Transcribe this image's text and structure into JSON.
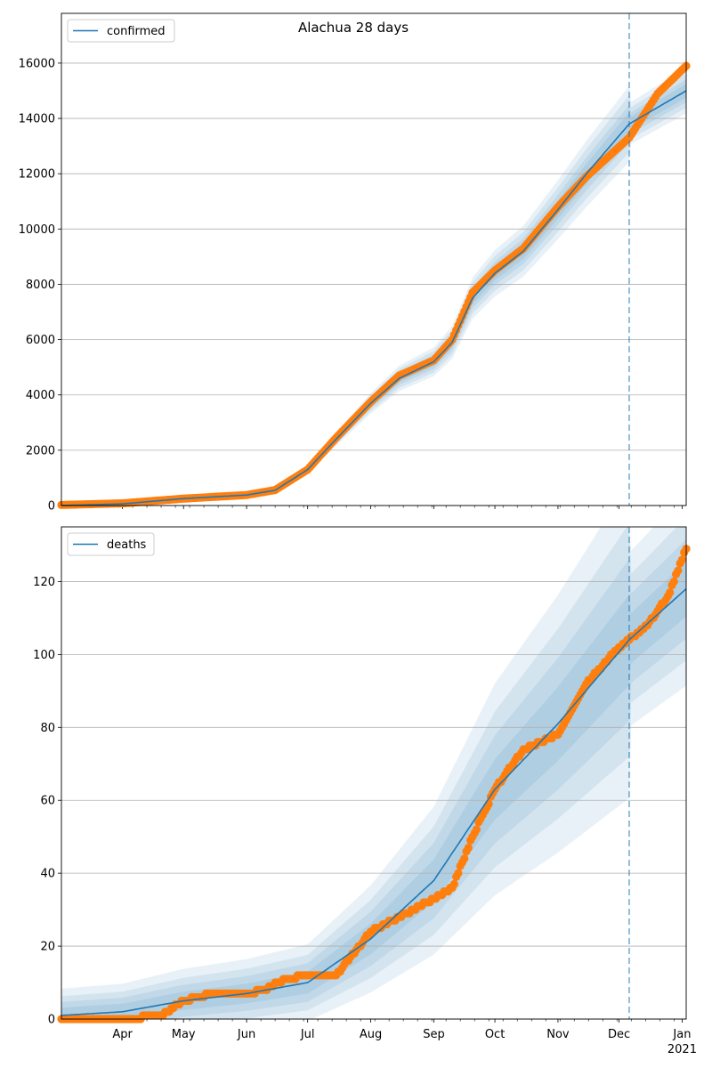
{
  "chart_data": [
    {
      "type": "line",
      "title": "Alachua 28 days",
      "legend": {
        "label": "confirmed",
        "placement": "top-left"
      },
      "xlim": [
        "2020-03-02",
        "2021-01-03"
      ],
      "ylim": [
        0,
        17800
      ],
      "y_ticks": [
        0,
        2000,
        4000,
        6000,
        8000,
        10000,
        12000,
        14000,
        16000
      ],
      "x_ticks": [
        {
          "date": "2020-04-01",
          "label": "Apr"
        },
        {
          "date": "2020-05-01",
          "label": "May"
        },
        {
          "date": "2020-06-01",
          "label": "Jun"
        },
        {
          "date": "2020-07-01",
          "label": "Jul"
        },
        {
          "date": "2020-08-01",
          "label": "Aug"
        },
        {
          "date": "2020-09-01",
          "label": "Sep"
        },
        {
          "date": "2020-10-01",
          "label": "Oct"
        },
        {
          "date": "2020-11-01",
          "label": "Nov"
        },
        {
          "date": "2020-12-01",
          "label": "Dec"
        },
        {
          "date": "2021-01-01",
          "label": "Jan",
          "sublabel": "2021"
        }
      ],
      "grid": "horizontal",
      "forecast_start": "2020-12-06",
      "colors": {
        "model": "#1f77b4",
        "observed": "#ff7f0e"
      },
      "band_fractions": [
        0.1,
        0.075,
        0.05,
        0.03
      ],
      "series": [
        {
          "name": "confirmed",
          "role": "model",
          "x": [
            "2020-03-02",
            "2020-04-01",
            "2020-05-01",
            "2020-06-01",
            "2020-06-15",
            "2020-07-01",
            "2020-07-15",
            "2020-08-01",
            "2020-08-15",
            "2020-09-01",
            "2020-09-10",
            "2020-09-20",
            "2020-10-01",
            "2020-10-15",
            "2020-11-01",
            "2020-11-15",
            "2020-12-06",
            "2020-12-20",
            "2021-01-03"
          ],
          "y": [
            0,
            60,
            250,
            380,
            550,
            1300,
            2400,
            3700,
            4600,
            5200,
            5900,
            7500,
            8400,
            9200,
            10700,
            12000,
            13800,
            14400,
            15000
          ]
        },
        {
          "name": "",
          "role": "observed",
          "x": [
            "2020-03-02",
            "2020-04-01",
            "2020-05-01",
            "2020-06-01",
            "2020-06-15",
            "2020-07-01",
            "2020-07-15",
            "2020-08-01",
            "2020-08-15",
            "2020-09-01",
            "2020-09-10",
            "2020-09-20",
            "2020-10-01",
            "2020-10-15",
            "2020-11-01",
            "2020-11-15",
            "2020-12-06",
            "2020-12-20",
            "2021-01-03"
          ],
          "y": [
            20,
            80,
            250,
            380,
            560,
            1300,
            2450,
            3750,
            4700,
            5250,
            6000,
            7700,
            8500,
            9300,
            10800,
            11900,
            13300,
            14900,
            15900
          ]
        }
      ]
    },
    {
      "type": "line",
      "title": "",
      "legend": {
        "label": "deaths",
        "placement": "top-left"
      },
      "xlim": [
        "2020-03-02",
        "2021-01-03"
      ],
      "ylim": [
        0,
        135
      ],
      "y_ticks": [
        0,
        20,
        40,
        60,
        80,
        100,
        120
      ],
      "x_ticks": [
        {
          "date": "2020-04-01",
          "label": "Apr"
        },
        {
          "date": "2020-05-01",
          "label": "May"
        },
        {
          "date": "2020-06-01",
          "label": "Jun"
        },
        {
          "date": "2020-07-01",
          "label": "Jul"
        },
        {
          "date": "2020-08-01",
          "label": "Aug"
        },
        {
          "date": "2020-09-01",
          "label": "Sep"
        },
        {
          "date": "2020-10-01",
          "label": "Oct"
        },
        {
          "date": "2020-11-01",
          "label": "Nov"
        },
        {
          "date": "2020-12-01",
          "label": "Dec"
        },
        {
          "date": "2021-01-01",
          "label": "Jan",
          "sublabel": "2021"
        }
      ],
      "grid": "horizontal",
      "forecast_start": "2020-12-06",
      "colors": {
        "model": "#1f77b4",
        "observed": "#ff7f0e"
      },
      "band_abs": [
        [
          7,
          0.35
        ],
        [
          5,
          0.26
        ],
        [
          3.5,
          0.18
        ],
        [
          2,
          0.1
        ]
      ],
      "series": [
        {
          "name": "deaths",
          "role": "model",
          "x": [
            "2020-03-02",
            "2020-04-01",
            "2020-05-01",
            "2020-06-01",
            "2020-07-01",
            "2020-08-01",
            "2020-09-01",
            "2020-10-01",
            "2020-11-01",
            "2020-12-06",
            "2021-01-03"
          ],
          "y": [
            1,
            2,
            5,
            7,
            10,
            22,
            38,
            63,
            81,
            104,
            118
          ]
        },
        {
          "name": "",
          "role": "observed",
          "x": [
            "2020-03-02",
            "2020-04-01",
            "2020-04-20",
            "2020-05-01",
            "2020-05-15",
            "2020-06-01",
            "2020-06-10",
            "2020-06-20",
            "2020-07-01",
            "2020-07-15",
            "2020-08-01",
            "2020-08-15",
            "2020-09-01",
            "2020-09-10",
            "2020-09-20",
            "2020-10-01",
            "2020-10-15",
            "2020-11-01",
            "2020-11-15",
            "2020-12-01",
            "2020-12-15",
            "2020-12-25",
            "2021-01-03"
          ],
          "y": [
            0,
            0,
            1,
            5,
            7,
            7,
            8,
            11,
            12,
            12,
            24,
            28,
            33,
            36,
            50,
            63,
            74,
            78,
            92,
            102,
            108,
            116,
            129
          ]
        }
      ]
    }
  ]
}
